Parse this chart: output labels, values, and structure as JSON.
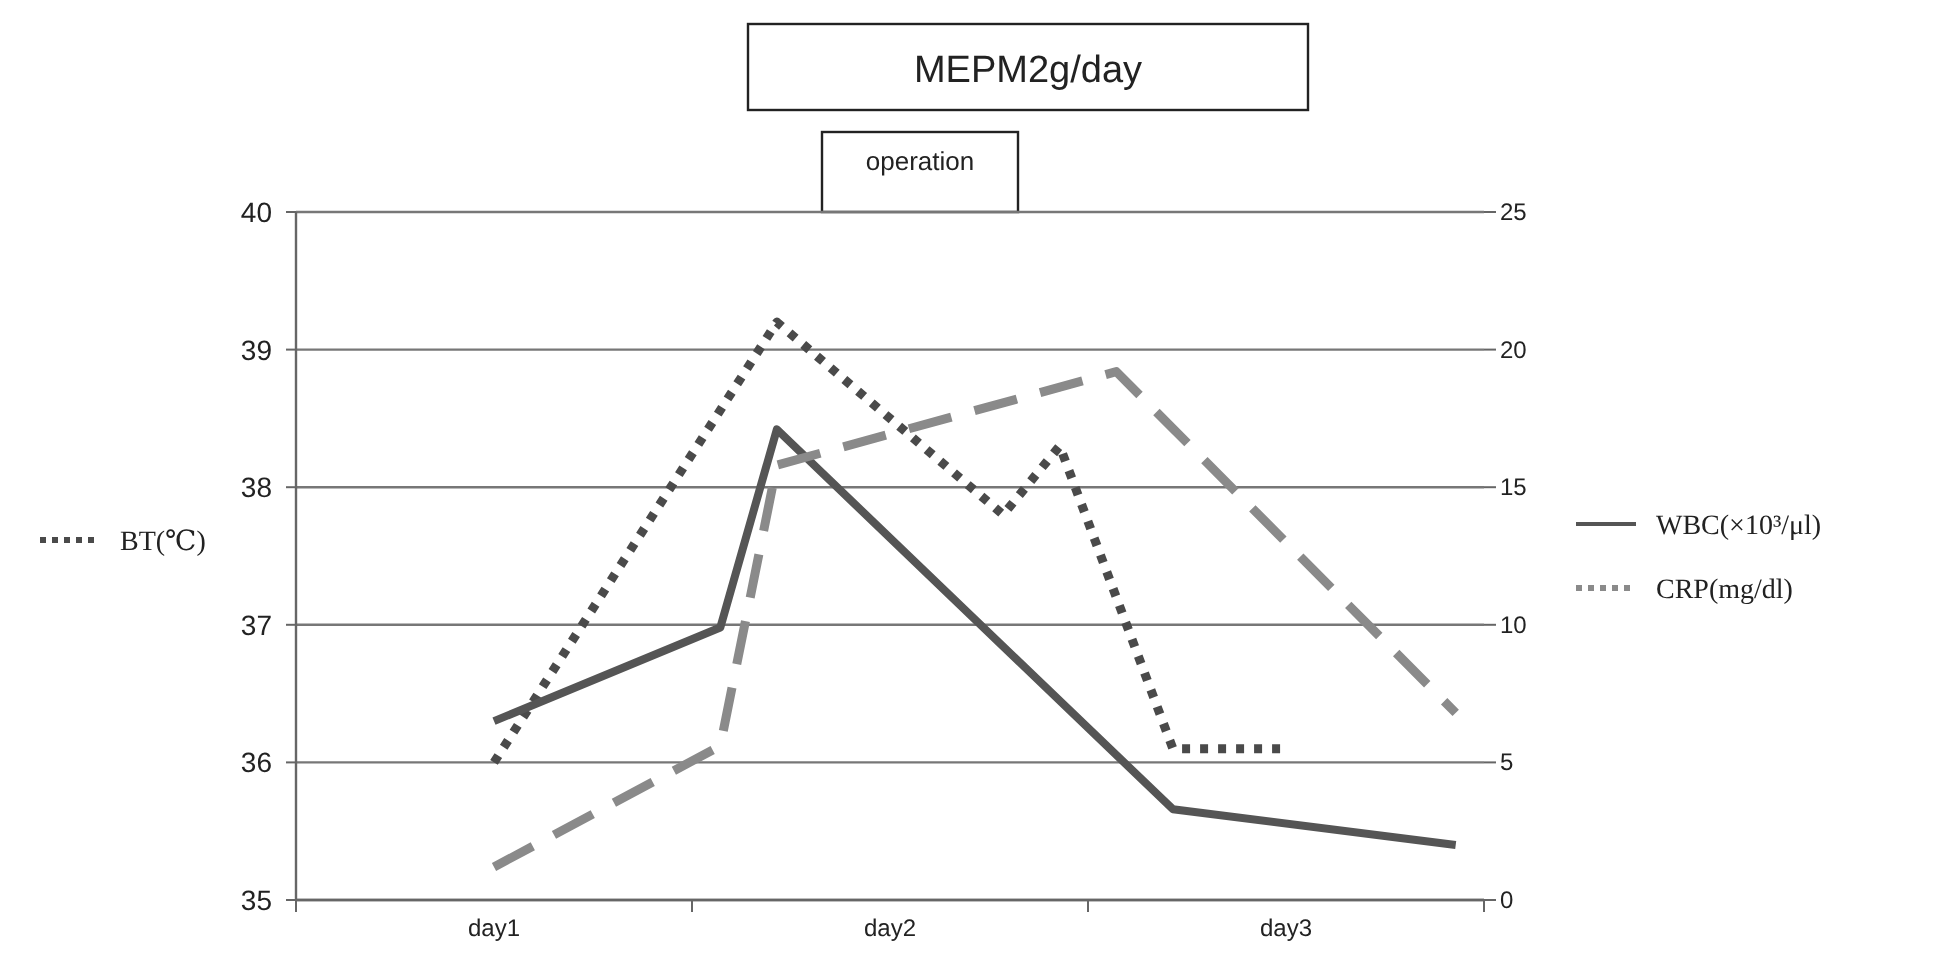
{
  "chart_data": {
    "type": "line",
    "title": "MEPM2g/day",
    "annotations": [
      "operation"
    ],
    "categories": [
      null,
      null,
      null,
      "day1",
      null,
      null,
      null,
      null,
      null,
      null,
      "day2",
      null,
      null,
      null,
      null,
      null,
      null,
      "day3",
      null,
      null,
      null
    ],
    "ylim": [
      35,
      40
    ],
    "yticks": [
      35,
      36,
      37,
      38,
      39,
      40
    ],
    "y2lim": [
      0,
      25
    ],
    "y2ticks": [
      0,
      5,
      10,
      15,
      20,
      25
    ],
    "grid": "y",
    "legend": "right",
    "marker": "none",
    "series": [
      {
        "name": "BT(℃)",
        "color": "#4a4a4a",
        "line_style": "dotted",
        "values": [
          null,
          null,
          null,
          36.0,
          null,
          null,
          null,
          null,
          39.2,
          null,
          null,
          null,
          37.8,
          38.3,
          null,
          36.1,
          null,
          36.1,
          null,
          null,
          null
        ]
      },
      {
        "name": "WBC(×10³/μl)",
        "color": "#555555",
        "line_style": "solid",
        "axis": "y2",
        "values": [
          null,
          null,
          null,
          6.5,
          null,
          null,
          null,
          9.9,
          17.1,
          null,
          null,
          null,
          null,
          null,
          null,
          3.3,
          null,
          null,
          null,
          null,
          2.0
        ]
      },
      {
        "name": "CRP(mg/dl)",
        "color": "#8a8a8a",
        "line_style": "dashed",
        "axis": "y2",
        "values": [
          null,
          null,
          null,
          1.2,
          null,
          null,
          null,
          5.6,
          15.8,
          null,
          null,
          null,
          null,
          null,
          19.2,
          null,
          null,
          null,
          null,
          null,
          6.8
        ]
      }
    ]
  }
}
